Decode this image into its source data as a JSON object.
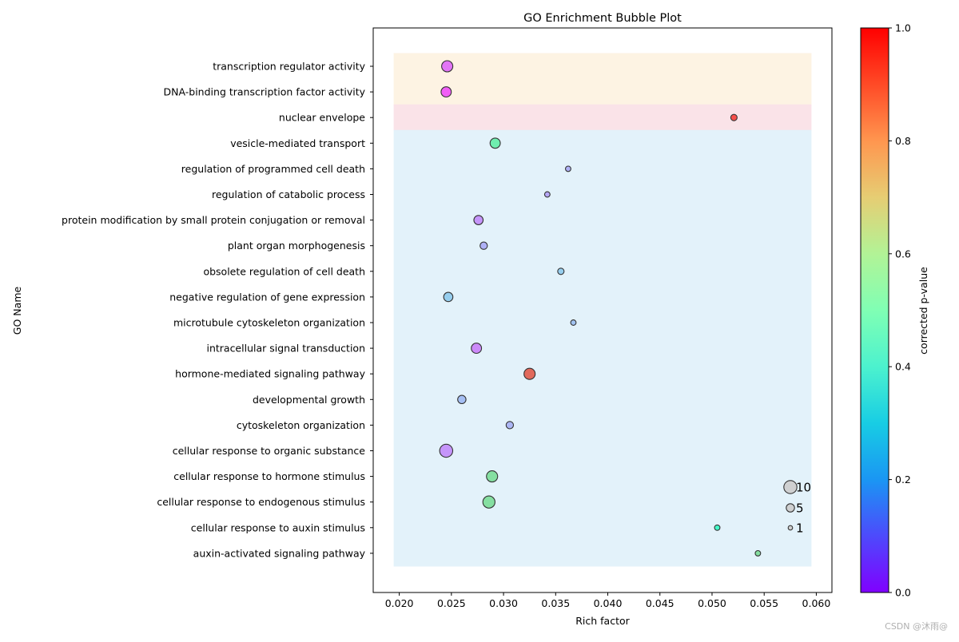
{
  "chart_data": {
    "type": "scatter",
    "title": "GO Enrichment Bubble Plot",
    "xlabel": "Rich factor",
    "ylabel": "GO Name",
    "xlim": [
      0.0175,
      0.0615
    ],
    "x_ticks": [
      "0.020",
      "0.025",
      "0.030",
      "0.035",
      "0.040",
      "0.045",
      "0.050",
      "0.055",
      "0.060"
    ],
    "grid": false,
    "colorbar": {
      "label": "corrected p-value",
      "colormap": "rainbow",
      "range": [
        0,
        1
      ],
      "ticks": [
        "0.0",
        "0.2",
        "0.4",
        "0.6",
        "0.8",
        "1.0"
      ]
    },
    "categories": [
      "transcription regulator activity",
      "DNA-binding transcription factor activity",
      "nuclear envelope",
      "vesicle-mediated transport",
      "regulation of programmed cell death",
      "regulation of catabolic process",
      "protein modification by small protein conjugation or removal",
      "plant organ morphogenesis",
      "obsolete regulation of cell death",
      "negative regulation of gene expression",
      "microtubule cytoskeleton organization",
      "intracellular signal transduction",
      "hormone-mediated signaling pathway",
      "developmental growth",
      "cytoskeleton organization",
      "cellular response to organic substance",
      "cellular response to hormone stimulus",
      "cellular response to endogenous stimulus",
      "cellular response to auxin stimulus",
      "auxin-activated signaling pathway"
    ],
    "points": [
      {
        "x": 0.0246,
        "count": 8,
        "p": 0.08
      },
      {
        "x": 0.0245,
        "count": 7,
        "p": 0.04
      },
      {
        "x": 0.0521,
        "count": 3,
        "p": 0.98
      },
      {
        "x": 0.0292,
        "count": 7,
        "p": 0.62
      },
      {
        "x": 0.0362,
        "count": 2,
        "p": 0.2
      },
      {
        "x": 0.0342,
        "count": 2,
        "p": 0.18
      },
      {
        "x": 0.0276,
        "count": 6,
        "p": 0.14
      },
      {
        "x": 0.0281,
        "count": 4,
        "p": 0.2
      },
      {
        "x": 0.0355,
        "count": 3,
        "p": 0.27
      },
      {
        "x": 0.0247,
        "count": 6,
        "p": 0.27
      },
      {
        "x": 0.0367,
        "count": 2,
        "p": 0.24
      },
      {
        "x": 0.0274,
        "count": 7,
        "p": 0.12
      },
      {
        "x": 0.0325,
        "count": 8,
        "p": 0.94
      },
      {
        "x": 0.026,
        "count": 5,
        "p": 0.23
      },
      {
        "x": 0.0306,
        "count": 4,
        "p": 0.21
      },
      {
        "x": 0.0245,
        "count": 10,
        "p": 0.14
      },
      {
        "x": 0.0289,
        "count": 8,
        "p": 0.68
      },
      {
        "x": 0.0286,
        "count": 9,
        "p": 0.68
      },
      {
        "x": 0.0505,
        "count": 2,
        "p": 0.5
      },
      {
        "x": 0.0544,
        "count": 2,
        "p": 0.68
      }
    ],
    "bands": [
      {
        "from": 0,
        "to": 1,
        "color": "#fdf3e3"
      },
      {
        "from": 2,
        "to": 2,
        "color": "#fae3e8"
      },
      {
        "from": 3,
        "to": 19,
        "color": "#e3f2fa"
      }
    ],
    "size_legend": {
      "placement": "lower-right",
      "entries": [
        {
          "label": "10",
          "count": 10
        },
        {
          "label": "5",
          "count": 5
        },
        {
          "label": "1",
          "count": 1
        }
      ]
    }
  },
  "watermark": "CSDN @沐雨@"
}
